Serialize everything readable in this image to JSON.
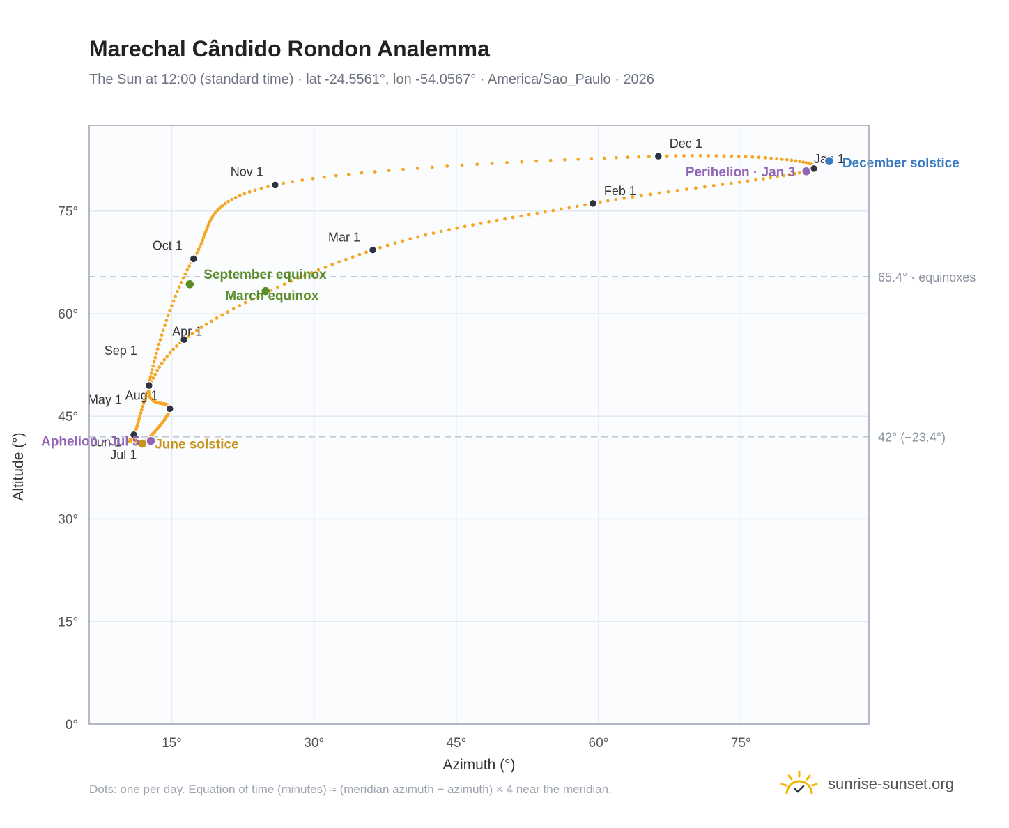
{
  "title": "Marechal Cândido Rondon Analemma",
  "subtitle": "The Sun at 12:00 (standard time) · lat -24.5561°, lon -54.0567° · America/Sao_Paulo · 2026",
  "footnote": "Dots: one per day. Equation of time (minutes) ≈ (meridian azimuth − azimuth) × 4 near the meridian.",
  "brand": {
    "name": "sunrise-sunset.org",
    "icon": "sun-logo-icon"
  },
  "colors": {
    "curve": "#f5a623",
    "month_marker": "#2d3340",
    "equinox": "#5b8c2a",
    "solstice_june": "#c8931a",
    "solstice_december": "#3a7bbf",
    "apsis": "#9264b4",
    "plot_bg": "#fafcfe",
    "grid": "#e5e9ef",
    "frame": "#9aa5b4"
  },
  "chart_data": {
    "type": "scatter",
    "xlabel": "Azimuth (°)",
    "ylabel": "Altitude (°)",
    "xlim": [
      6.3,
      88.5
    ],
    "ylim": [
      0,
      87.5
    ],
    "xticks": [
      15,
      30,
      45,
      60,
      75
    ],
    "xtick_labels": [
      "15°",
      "30°",
      "45°",
      "60°",
      "75°"
    ],
    "yticks": [
      0,
      15,
      30,
      45,
      60,
      75
    ],
    "ytick_labels": [
      "0°",
      "15°",
      "30°",
      "45°",
      "60°",
      "75°"
    ],
    "grid": true,
    "reference_lines": [
      {
        "y": 65.4,
        "label": "65.4° · equinoxes"
      },
      {
        "y": 42.0,
        "label": "42° (−23.4°)"
      }
    ],
    "daily_points": {
      "description_of_track": "one point per day",
      "anchors": [
        {
          "date": "Jan 1",
          "x": 82.7,
          "y": 81.2
        },
        {
          "date": "Feb 1",
          "x": 59.4,
          "y": 76.1
        },
        {
          "date": "Mar 1",
          "x": 36.2,
          "y": 69.3
        },
        {
          "date": "Apr 1",
          "x": 16.3,
          "y": 56.2
        },
        {
          "date": "May 1",
          "x": 11.0,
          "y": 42.3
        },
        {
          "date": "Jun 1",
          "x": 11.0,
          "y": 42.3
        },
        {
          "date": "Jul 1",
          "x": 11.9,
          "y": 41.0
        },
        {
          "date": "Aug 1",
          "x": 14.8,
          "y": 46.1
        },
        {
          "date": "Sep 1",
          "x": 12.6,
          "y": 49.5
        },
        {
          "date": "Oct 1",
          "x": 17.3,
          "y": 68.0
        },
        {
          "date": "Nov 1",
          "x": 25.9,
          "y": 78.8
        },
        {
          "date": "Dec 1",
          "x": 66.3,
          "y": 83.0
        }
      ]
    },
    "month_markers": [
      {
        "label": "Jan 1",
        "x": 82.7,
        "y": 81.2
      },
      {
        "label": "Feb 1",
        "x": 59.4,
        "y": 76.1
      },
      {
        "label": "Mar 1",
        "x": 36.2,
        "y": 69.3
      },
      {
        "label": "Apr 1",
        "x": 16.3,
        "y": 56.2
      },
      {
        "label": "May 1",
        "x": 11.0,
        "y": 42.3
      },
      {
        "label": "Jun 1",
        "x": 11.0,
        "y": 42.3
      },
      {
        "label": "Jul 1",
        "x": 11.9,
        "y": 41.0
      },
      {
        "label": "Aug 1",
        "x": 14.8,
        "y": 46.1
      },
      {
        "label": "Sep 1",
        "x": 12.6,
        "y": 49.5
      },
      {
        "label": "Oct 1",
        "x": 17.3,
        "y": 68.0
      },
      {
        "label": "Nov 1",
        "x": 25.9,
        "y": 78.8
      },
      {
        "label": "Dec 1",
        "x": 66.3,
        "y": 83.0
      }
    ],
    "events": [
      {
        "label": "March equinox",
        "x": 24.9,
        "y": 63.3,
        "kind": "equinox"
      },
      {
        "label": "September equinox",
        "x": 16.9,
        "y": 64.3,
        "kind": "equinox"
      },
      {
        "label": "June solstice",
        "x": 11.9,
        "y": 41.0,
        "kind": "solstice_june"
      },
      {
        "label": "December solstice",
        "x": 84.3,
        "y": 82.3,
        "kind": "solstice_december"
      },
      {
        "label": "Aphelion · Jul 5",
        "x": 12.8,
        "y": 41.4,
        "kind": "apsis"
      },
      {
        "label": "Perihelion · Jan 3",
        "x": 81.9,
        "y": 80.8,
        "kind": "apsis"
      }
    ]
  }
}
